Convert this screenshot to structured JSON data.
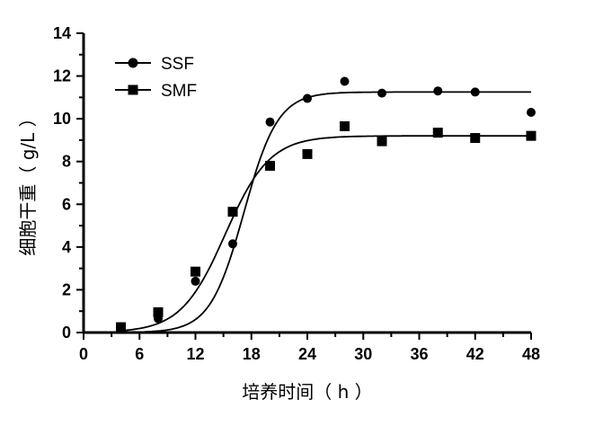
{
  "chart_data": {
    "type": "scatter",
    "title": "",
    "xlabel": "培养时间（ h ）",
    "ylabel": "细胞干重（ g/L ）",
    "xlim": [
      0,
      48
    ],
    "ylim": [
      0,
      14
    ],
    "xticks": [
      0,
      6,
      12,
      18,
      24,
      30,
      36,
      42,
      48
    ],
    "yticks": [
      0,
      2,
      4,
      6,
      8,
      10,
      12,
      14
    ],
    "xtick_labels": [
      "0",
      "6",
      "12",
      "18",
      "24",
      "30",
      "36",
      "42",
      "48"
    ],
    "ytick_labels": [
      "0",
      "2",
      "4",
      "6",
      "8",
      "10",
      "12",
      "14"
    ],
    "grid": false,
    "legend_position": "top-left",
    "series": [
      {
        "name": "SSF",
        "marker": "circle",
        "color": "#000000",
        "x": [
          4,
          8,
          12,
          16,
          20,
          24,
          28,
          32,
          38,
          42,
          48
        ],
        "y": [
          0.2,
          0.65,
          2.4,
          4.15,
          9.85,
          10.95,
          11.75,
          11.2,
          11.3,
          11.25,
          10.3
        ],
        "fit": {
          "model": "logistic",
          "A": 11.25,
          "x0": 17.2,
          "k": 0.55
        }
      },
      {
        "name": "SMF",
        "marker": "square",
        "color": "#000000",
        "x": [
          4,
          8,
          12,
          16,
          20,
          24,
          28,
          32,
          38,
          42,
          48
        ],
        "y": [
          0.25,
          0.95,
          2.85,
          5.65,
          7.8,
          8.35,
          9.65,
          8.95,
          9.35,
          9.1,
          9.2
        ],
        "fit": {
          "model": "logistic",
          "A": 9.2,
          "x0": 15.2,
          "k": 0.42
        }
      }
    ]
  }
}
